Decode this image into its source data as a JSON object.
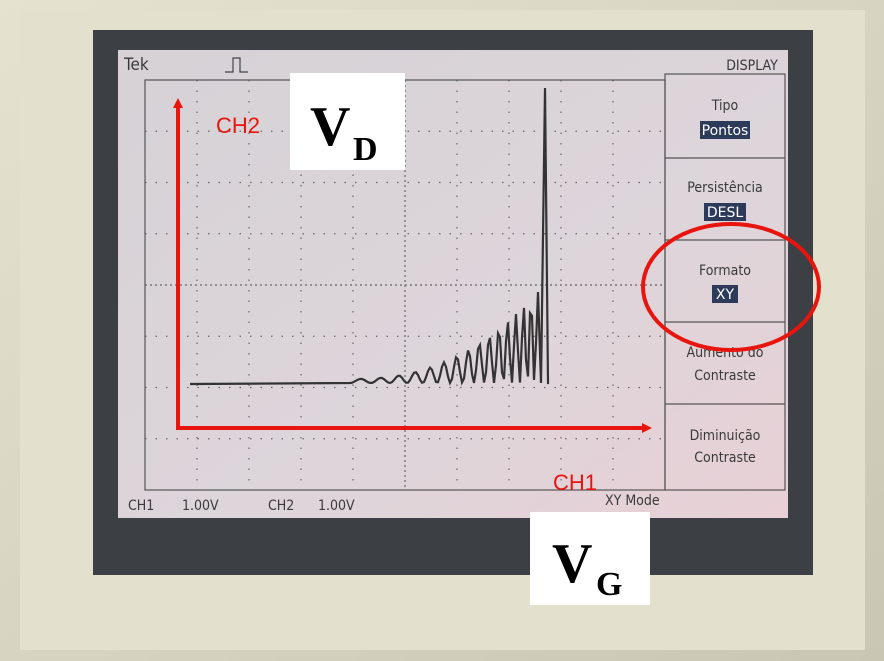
{
  "header": {
    "brand": "Tek"
  },
  "menu": {
    "title": "DISPLAY",
    "items": [
      {
        "label": "Tipo",
        "value": "Pontos"
      },
      {
        "label": "Persistência",
        "value": "DESL"
      },
      {
        "label": "Formato",
        "value": "XY"
      },
      {
        "label": "Aumento do",
        "value": "Contraste"
      },
      {
        "label": "Diminuição",
        "value": "Contraste"
      }
    ]
  },
  "status": {
    "ch1": "CH1",
    "ch1_scale": "1.00V",
    "ch2": "CH2",
    "ch2_scale": "1.00V",
    "mode": "XY Mode"
  },
  "annotations": {
    "y_channel": "CH2",
    "y_symbol": "V",
    "y_subscript": "D",
    "x_channel": "CH1",
    "x_symbol": "V",
    "x_subscript": "G"
  }
}
